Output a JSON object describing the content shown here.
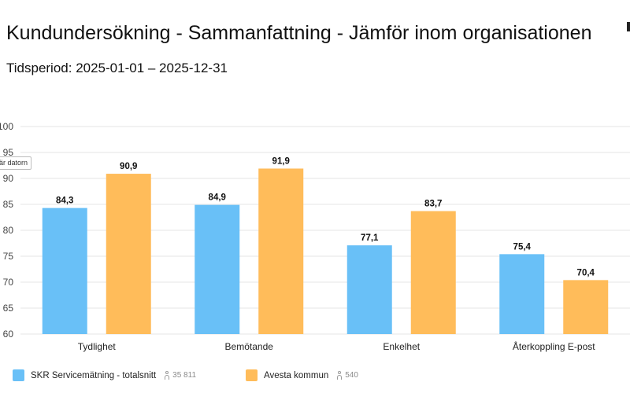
{
  "title": "Kundundersökning - Sammanfattning - Jämför inom organisationen",
  "subtitle": "Tidsperiod: 2025-01-01 – 2025-12-31",
  "tooltip": "är datorn",
  "colors": {
    "series1": "#69c0f7",
    "series2": "#ffbc5a",
    "grid": "#e6e6e6"
  },
  "icons": {
    "respondents": "person-icon"
  },
  "legend": [
    {
      "label": "SKR Servicemätning - totalsnitt",
      "count": "35 811"
    },
    {
      "label": "Avesta kommun",
      "count": "540"
    }
  ],
  "chart_data": {
    "type": "bar",
    "categories": [
      "Tydlighet",
      "Bemötande",
      "Enkelhet",
      "Återkoppling E-post"
    ],
    "series": [
      {
        "name": "SKR Servicemätning - totalsnitt",
        "values": [
          84.3,
          84.9,
          77.1,
          75.4
        ],
        "labels": [
          "84,3",
          "84,9",
          "77,1",
          "75,4"
        ]
      },
      {
        "name": "Avesta kommun",
        "values": [
          90.9,
          91.9,
          83.7,
          70.4
        ],
        "labels": [
          "90,9",
          "91,9",
          "83,7",
          "70,4"
        ]
      }
    ],
    "yticks": [
      60,
      65,
      70,
      75,
      80,
      85,
      90,
      95,
      100
    ],
    "ylim": [
      60,
      100
    ],
    "grid": true,
    "legend_position": "bottom-left",
    "xlabel": "",
    "ylabel": ""
  }
}
